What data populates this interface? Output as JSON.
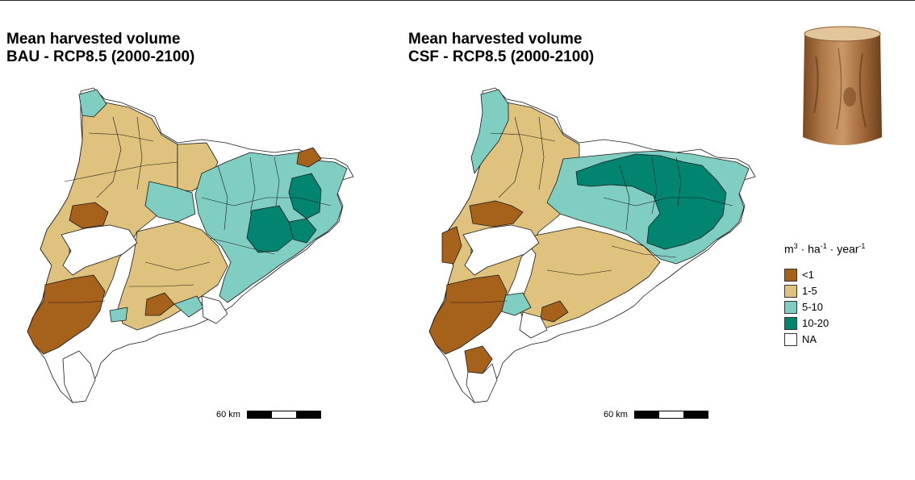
{
  "panels": [
    {
      "title_line1": "Mean harvested volume",
      "title_line2": "BAU - RCP8.5 (2000-2100)",
      "scale_label": "60 km"
    },
    {
      "title_line1": "Mean harvested volume",
      "title_line2": "CSF - RCP8.5 (2000-2100)",
      "scale_label": "60 km"
    }
  ],
  "legend": {
    "unit": {
      "m": "m",
      "m_exp": "3",
      "ha": "ha",
      "ha_exp": "-1",
      "year": "year",
      "year_exp": "-1",
      "dot": "·"
    },
    "classes": [
      {
        "label": "<1",
        "color": "#a6611a"
      },
      {
        "label": "1-5",
        "color": "#dfc27d"
      },
      {
        "label": "5-10",
        "color": "#80cdc1"
      },
      {
        "label": "10-20",
        "color": "#018571"
      },
      {
        "label": "NA",
        "color": "#ffffff"
      }
    ]
  }
}
